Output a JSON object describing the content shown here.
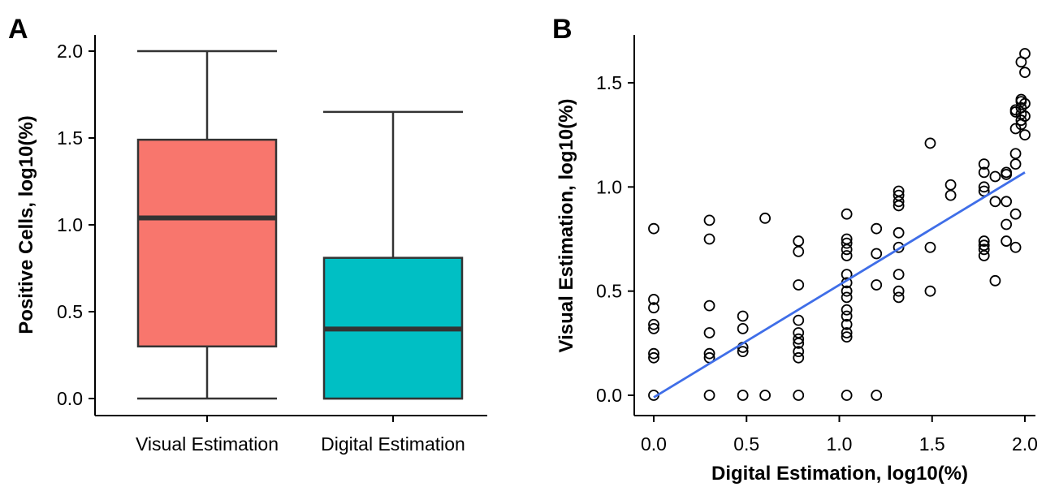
{
  "chart_data": [
    {
      "panel": "A",
      "type": "box",
      "xlabel": "",
      "ylabel": "Positive Cells, log10(%)",
      "ylim": [
        0,
        2.0
      ],
      "yticks": [
        "0.0",
        "0.5",
        "1.0",
        "1.5",
        "2.0"
      ],
      "categories": [
        "Visual Estimation",
        "Digital Estimation"
      ],
      "colors": [
        "#f8766d",
        "#00bfc4"
      ],
      "boxes": [
        {
          "min": 0.0,
          "q1": 0.3,
          "median": 1.04,
          "q3": 1.49,
          "max": 2.0
        },
        {
          "min": 0.0,
          "q1": 0.0,
          "median": 0.4,
          "q3": 0.81,
          "max": 1.65
        }
      ]
    },
    {
      "panel": "B",
      "type": "scatter",
      "xlabel": "Digital Estimation, log10(%)",
      "ylabel": "Visual Estimation, log10(%)",
      "xlim": [
        0,
        2.0
      ],
      "ylim": [
        0,
        1.65
      ],
      "xticks": [
        "0.0",
        "0.5",
        "1.0",
        "1.5",
        "2.0"
      ],
      "yticks": [
        "0.0",
        "0.5",
        "1.0",
        "1.5"
      ],
      "fit_line": {
        "color": "#3f6ee8",
        "x": [
          0,
          2.0
        ],
        "y": [
          -0.01,
          1.07
        ]
      },
      "points": [
        [
          0,
          0.8
        ],
        [
          0,
          0.46
        ],
        [
          0,
          0.42
        ],
        [
          0,
          0.34
        ],
        [
          0,
          0.32
        ],
        [
          0,
          0.2
        ],
        [
          0,
          0.18
        ],
        [
          0,
          0
        ],
        [
          0.3,
          0.84
        ],
        [
          0.3,
          0.75
        ],
        [
          0.3,
          0.43
        ],
        [
          0.3,
          0.3
        ],
        [
          0.3,
          0.2
        ],
        [
          0.3,
          0.18
        ],
        [
          0.3,
          0
        ],
        [
          0.48,
          0.38
        ],
        [
          0.48,
          0.32
        ],
        [
          0.48,
          0.23
        ],
        [
          0.48,
          0.21
        ],
        [
          0.48,
          0
        ],
        [
          0.6,
          0.85
        ],
        [
          0.6,
          0
        ],
        [
          0.78,
          0.74
        ],
        [
          0.78,
          0.69
        ],
        [
          0.78,
          0.53
        ],
        [
          0.78,
          0.36
        ],
        [
          0.78,
          0.3
        ],
        [
          0.78,
          0.27
        ],
        [
          0.78,
          0.25
        ],
        [
          0.78,
          0.21
        ],
        [
          0.78,
          0.18
        ],
        [
          0.78,
          0
        ],
        [
          1.04,
          0.87
        ],
        [
          1.04,
          0.75
        ],
        [
          1.04,
          0.73
        ],
        [
          1.04,
          0.7
        ],
        [
          1.04,
          0.67
        ],
        [
          1.04,
          0.58
        ],
        [
          1.04,
          0.54
        ],
        [
          1.04,
          0.5
        ],
        [
          1.04,
          0.47
        ],
        [
          1.04,
          0.41
        ],
        [
          1.04,
          0.38
        ],
        [
          1.04,
          0.34
        ],
        [
          1.04,
          0.3
        ],
        [
          1.04,
          0.28
        ],
        [
          1.04,
          0
        ],
        [
          1.2,
          0.8
        ],
        [
          1.2,
          0.68
        ],
        [
          1.2,
          0.53
        ],
        [
          1.2,
          0
        ],
        [
          1.32,
          0.98
        ],
        [
          1.32,
          0.96
        ],
        [
          1.32,
          0.93
        ],
        [
          1.32,
          0.91
        ],
        [
          1.32,
          0.78
        ],
        [
          1.32,
          0.71
        ],
        [
          1.32,
          0.58
        ],
        [
          1.32,
          0.5
        ],
        [
          1.32,
          0.47
        ],
        [
          1.49,
          1.21
        ],
        [
          1.49,
          0.71
        ],
        [
          1.49,
          0.5
        ],
        [
          1.6,
          1.01
        ],
        [
          1.6,
          0.96
        ],
        [
          1.78,
          1.11
        ],
        [
          1.78,
          1.07
        ],
        [
          1.78,
          1.0
        ],
        [
          1.78,
          0.98
        ],
        [
          1.78,
          0.74
        ],
        [
          1.78,
          0.72
        ],
        [
          1.78,
          0.7
        ],
        [
          1.78,
          0.67
        ],
        [
          1.84,
          1.05
        ],
        [
          1.84,
          0.93
        ],
        [
          1.84,
          0.55
        ],
        [
          1.9,
          1.07
        ],
        [
          1.9,
          1.06
        ],
        [
          1.9,
          0.93
        ],
        [
          1.9,
          0.82
        ],
        [
          1.9,
          0.74
        ],
        [
          1.95,
          1.37
        ],
        [
          1.95,
          1.36
        ],
        [
          1.95,
          1.28
        ],
        [
          1.95,
          1.16
        ],
        [
          1.95,
          1.11
        ],
        [
          1.95,
          0.87
        ],
        [
          1.95,
          0.71
        ],
        [
          1.98,
          1.6
        ],
        [
          1.98,
          1.42
        ],
        [
          1.98,
          1.41
        ],
        [
          1.98,
          1.38
        ],
        [
          1.98,
          1.35
        ],
        [
          1.98,
          1.32
        ],
        [
          1.98,
          1.3
        ],
        [
          2.0,
          1.64
        ],
        [
          2.0,
          1.55
        ],
        [
          2.0,
          1.4
        ],
        [
          2.0,
          1.34
        ],
        [
          2.0,
          1.25
        ]
      ]
    }
  ]
}
